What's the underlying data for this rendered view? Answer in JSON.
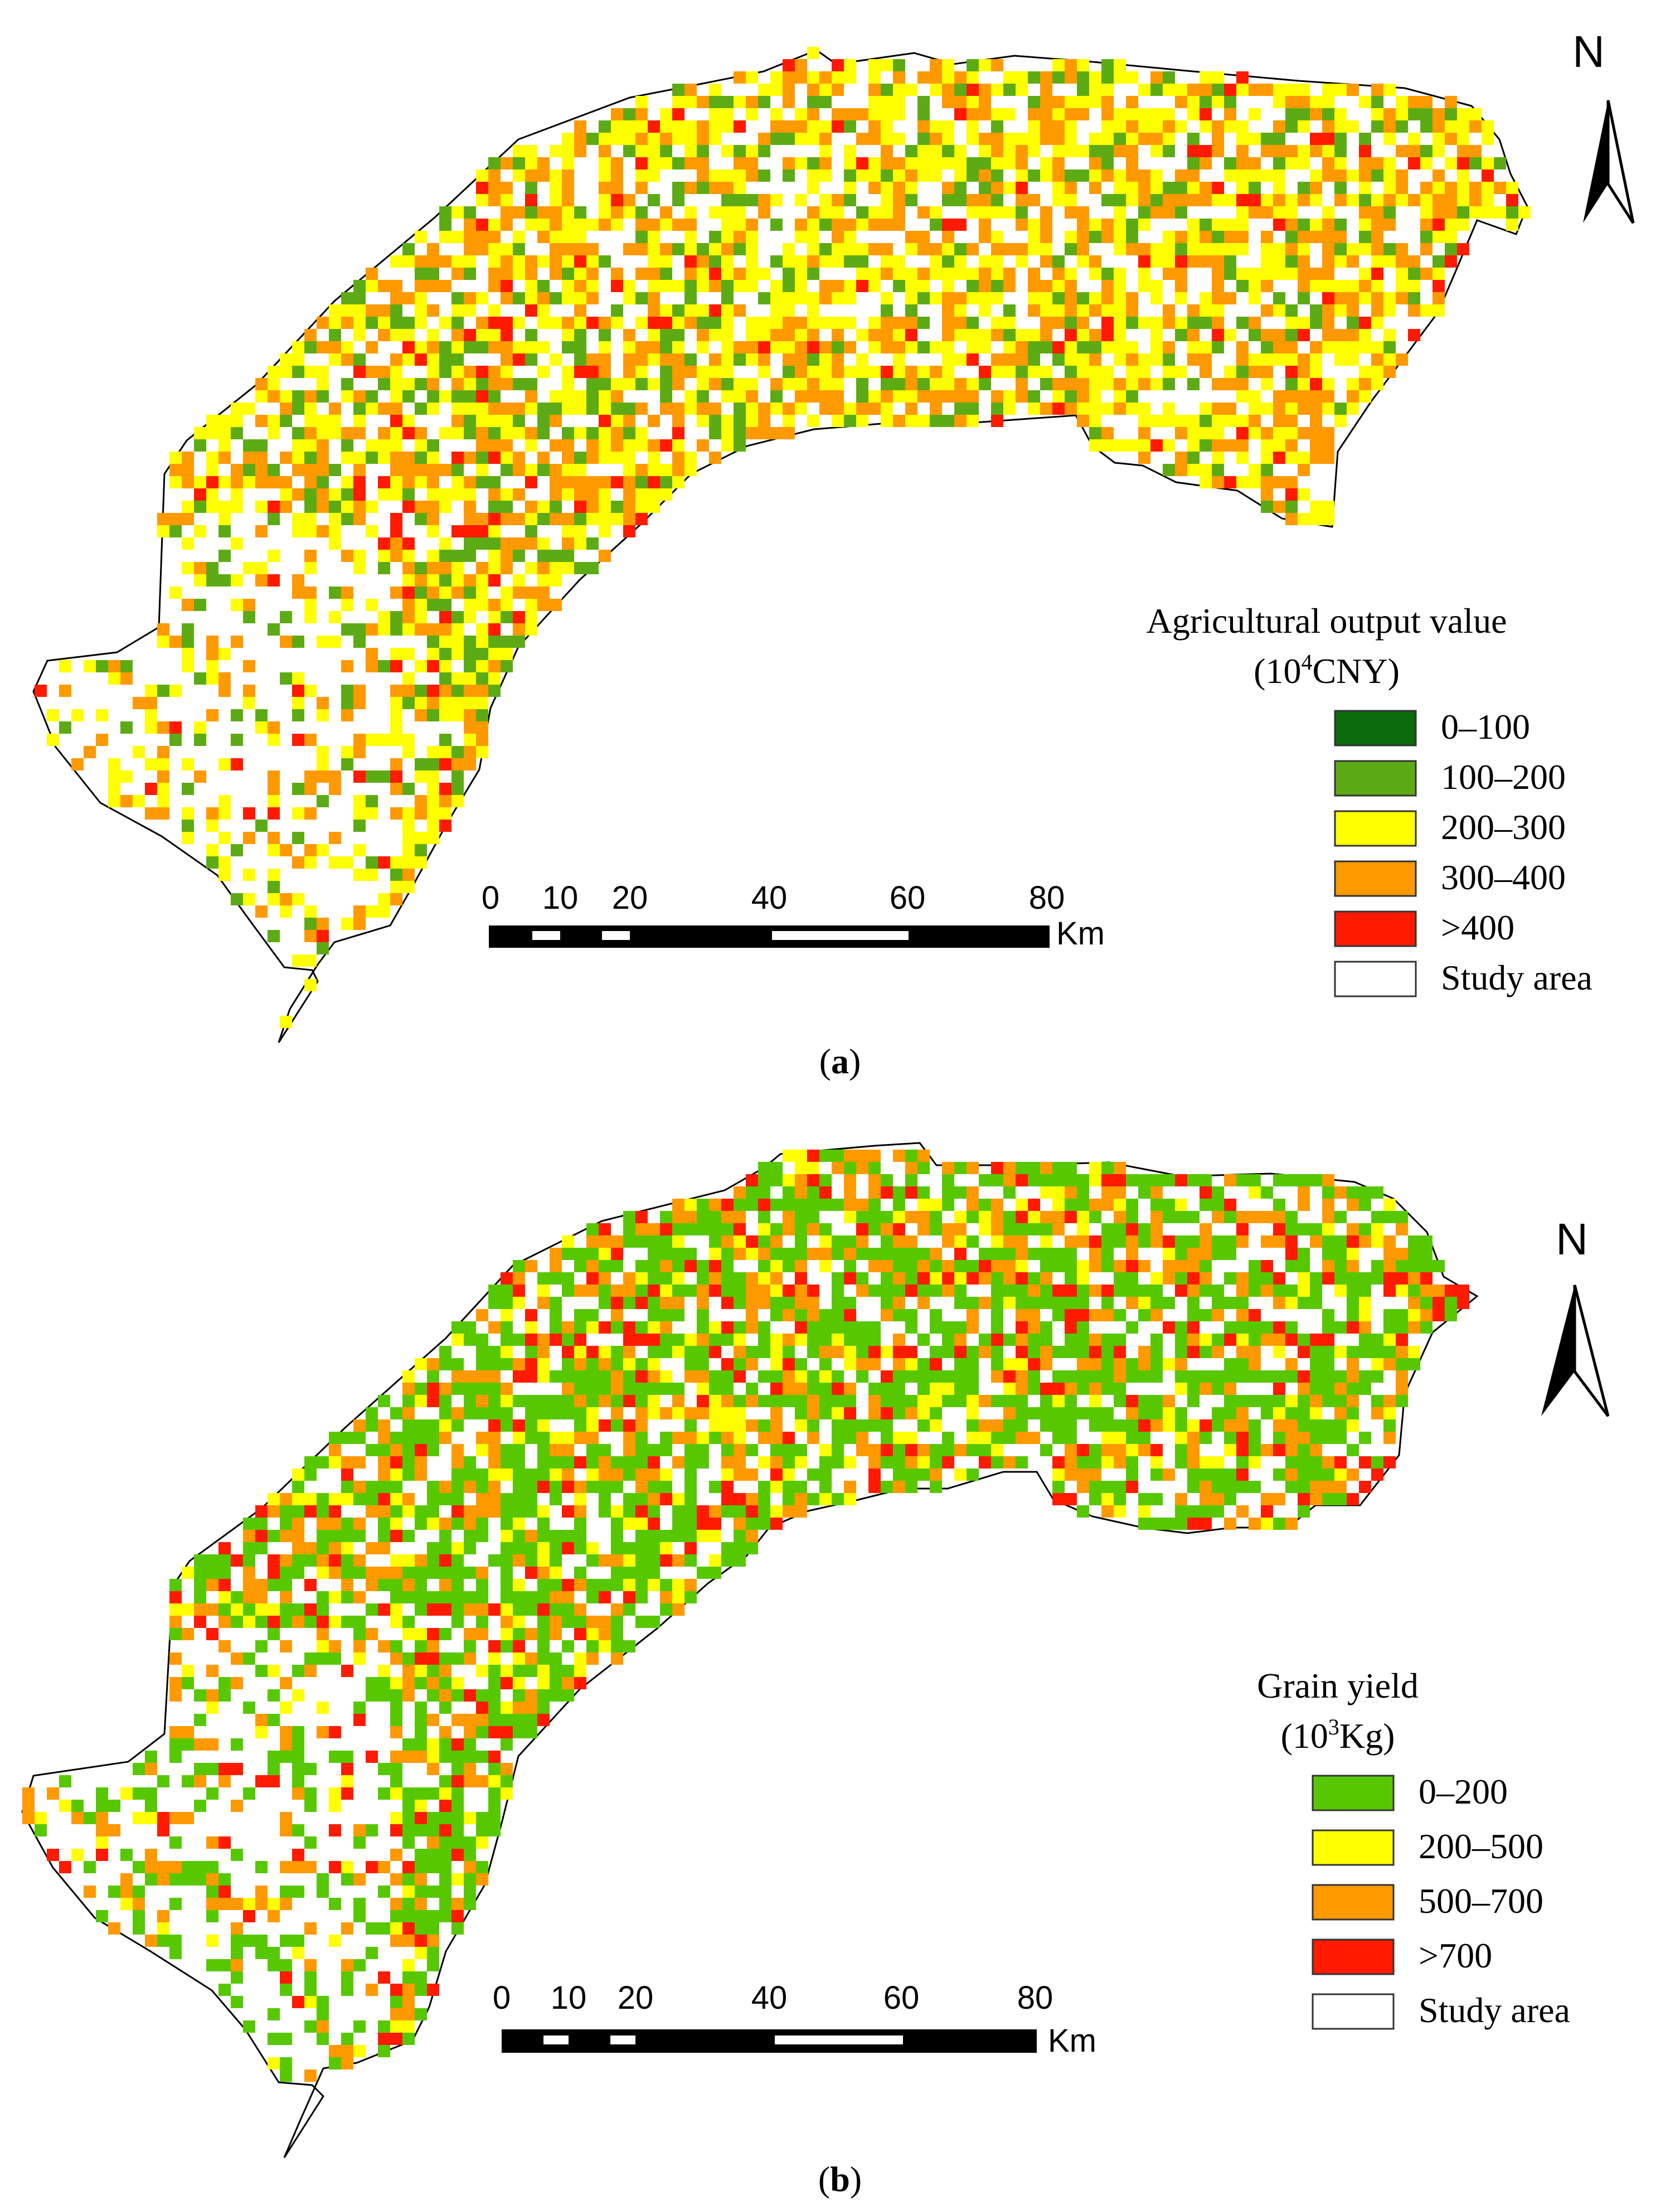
{
  "palette": {
    "dark_green": "#0b6b0b",
    "green": "#5dab14",
    "bright_green": "#57c800",
    "yellow": "#ffff00",
    "orange": "#ff9900",
    "red": "#ff1a00",
    "white": "#ffffff",
    "outline": "#000000"
  },
  "panels": [
    {
      "id": "a",
      "label_open": "(",
      "label_letter": "a",
      "label_close": ")",
      "north_letter": "N",
      "legend": {
        "title": "Agricultural output value",
        "unit_prefix": "(10",
        "unit_exponent": "4",
        "unit_suffix": "CNY)",
        "classes": [
          {
            "label": "0–100",
            "color": "#0b6b0b"
          },
          {
            "label": "100–200",
            "color": "#5dab14"
          },
          {
            "label": "200–300",
            "color": "#ffff00"
          },
          {
            "label": "300–400",
            "color": "#ff9900"
          },
          {
            "label": ">400",
            "color": "#ff1a00"
          },
          {
            "label": "Study area",
            "color": "#ffffff"
          }
        ]
      },
      "scale_bar": {
        "ticks": [
          "0",
          "10",
          "20",
          "40",
          "60",
          "80"
        ],
        "unit": "Km"
      }
    },
    {
      "id": "b",
      "label_open": "(",
      "label_letter": "b",
      "label_close": ")",
      "north_letter": "N",
      "legend": {
        "title": "Grain yield",
        "unit_prefix": "(10",
        "unit_exponent": "3",
        "unit_suffix": "Kg)",
        "classes": [
          {
            "label": "0–200",
            "color": "#57c800"
          },
          {
            "label": "200–500",
            "color": "#ffff00"
          },
          {
            "label": "500–700",
            "color": "#ff9900"
          },
          {
            "label": ">700",
            "color": "#ff1a00"
          },
          {
            "label": "Study area",
            "color": "#ffffff"
          }
        ]
      },
      "scale_bar": {
        "ticks": [
          "0",
          "10",
          "20",
          "40",
          "60",
          "80"
        ],
        "unit": "Km"
      }
    }
  ]
}
